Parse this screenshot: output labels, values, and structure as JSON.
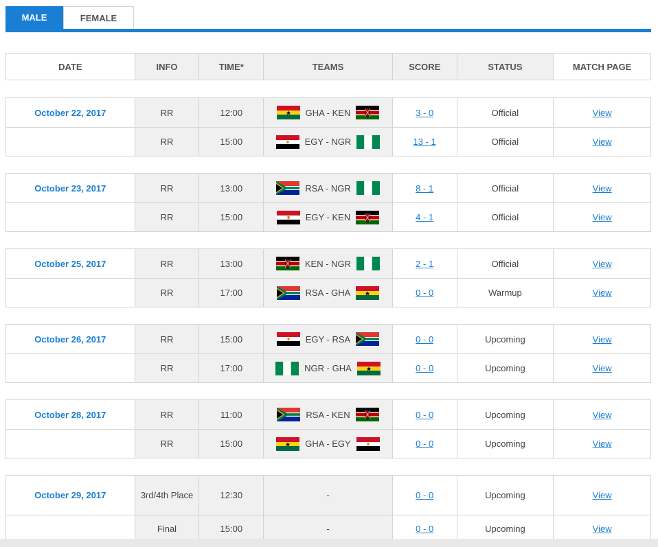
{
  "tabs": [
    {
      "label": "MALE",
      "active": true
    },
    {
      "label": "FEMALE",
      "active": false
    }
  ],
  "columns": {
    "date": "DATE",
    "info": "INFO",
    "time": "TIME*",
    "teams": "TEAMS",
    "score": "SCORE",
    "status": "STATUS",
    "match_page": "MATCH PAGE"
  },
  "groups": [
    {
      "date": "October 22, 2017",
      "matches": [
        {
          "info": "RR",
          "time": "12:00",
          "teams": "GHA - KEN",
          "home": "GHA",
          "away": "KEN",
          "score": "3 - 0",
          "status": "Official",
          "link": "View"
        },
        {
          "info": "RR",
          "time": "15:00",
          "teams": "EGY - NGR",
          "home": "EGY",
          "away": "NGR",
          "score": "13 - 1",
          "status": "Official",
          "link": "View"
        }
      ]
    },
    {
      "date": "October 23, 2017",
      "matches": [
        {
          "info": "RR",
          "time": "13:00",
          "teams": "RSA - NGR",
          "home": "RSA",
          "away": "NGR",
          "score": "8 - 1",
          "status": "Official",
          "link": "View"
        },
        {
          "info": "RR",
          "time": "15:00",
          "teams": "EGY - KEN",
          "home": "EGY",
          "away": "KEN",
          "score": "4 - 1",
          "status": "Official",
          "link": "View"
        }
      ]
    },
    {
      "date": "October 25, 2017",
      "matches": [
        {
          "info": "RR",
          "time": "13:00",
          "teams": "KEN - NGR",
          "home": "KEN",
          "away": "NGR",
          "score": "2 - 1",
          "status": "Official",
          "link": "View"
        },
        {
          "info": "RR",
          "time": "17:00",
          "teams": "RSA - GHA",
          "home": "RSA",
          "away": "GHA",
          "score": "0 - 0",
          "status": "Warmup",
          "link": "View"
        }
      ]
    },
    {
      "date": "October 26, 2017",
      "matches": [
        {
          "info": "RR",
          "time": "15:00",
          "teams": "EGY - RSA",
          "home": "EGY",
          "away": "RSA",
          "score": "0 - 0",
          "status": "Upcoming",
          "link": "View"
        },
        {
          "info": "RR",
          "time": "17:00",
          "teams": "NGR - GHA",
          "home": "NGR",
          "away": "GHA",
          "score": "0 - 0",
          "status": "Upcoming",
          "link": "View"
        }
      ]
    },
    {
      "date": "October 28, 2017",
      "matches": [
        {
          "info": "RR",
          "time": "11:00",
          "teams": "RSA - KEN",
          "home": "RSA",
          "away": "KEN",
          "score": "0 - 0",
          "status": "Upcoming",
          "link": "View"
        },
        {
          "info": "RR",
          "time": "15:00",
          "teams": "GHA - EGY",
          "home": "GHA",
          "away": "EGY",
          "score": "0 - 0",
          "status": "Upcoming",
          "link": "View"
        }
      ]
    },
    {
      "date": "October 29, 2017",
      "matches": [
        {
          "info": "3rd/4th Place",
          "time": "12:30",
          "teams": "-",
          "home": "",
          "away": "",
          "score": "0 - 0",
          "status": "Upcoming",
          "link": "View"
        },
        {
          "info": "Final",
          "time": "15:00",
          "teams": "-",
          "home": "",
          "away": "",
          "score": "0 - 0",
          "status": "Upcoming",
          "link": "View"
        }
      ]
    }
  ],
  "colors": {
    "accent": "#1a7fd4",
    "header_gray": "#f0f0f0",
    "border": "#d4d4d4"
  }
}
